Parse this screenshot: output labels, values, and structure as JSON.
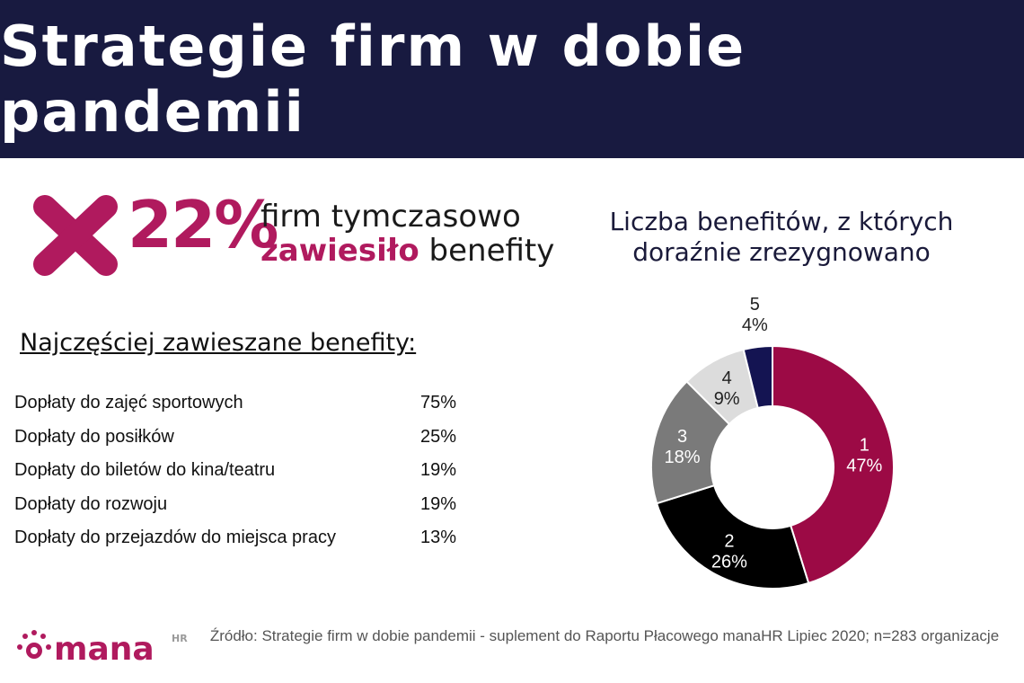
{
  "header": {
    "title": "Strategie firm w dobie pandemii"
  },
  "highlight": {
    "percent": "22%",
    "line1": "firm tymczasowo",
    "accent_word": "zawiesiło",
    "line2_rest": "benefity"
  },
  "list": {
    "title": "Najczęściej zawieszane benefity:",
    "items": [
      {
        "label": "Dopłaty do zajęć sportowych",
        "value": "75%"
      },
      {
        "label": "Dopłaty do posiłków",
        "value": "25%"
      },
      {
        "label": "Dopłaty do biletów do kina/teatru",
        "value": "19%"
      },
      {
        "label": "Dopłaty do rozwoju",
        "value": "19%"
      },
      {
        "label": "Dopłaty do przejazdów do miejsca pracy",
        "value": "13%"
      }
    ]
  },
  "chart_data": {
    "type": "pie",
    "title": "Liczba benefitów, z których doraźnie zrezygnowano",
    "categories": [
      "1",
      "2",
      "3",
      "4",
      "5"
    ],
    "values": [
      47,
      26,
      18,
      9,
      4
    ],
    "labels": [
      "47%",
      "26%",
      "18%",
      "9%",
      "4%"
    ],
    "colors": [
      "#9c0a45",
      "#000000",
      "#7a7a7a",
      "#dcdcdc",
      "#141452"
    ],
    "label_colors": [
      "#ffffff",
      "#ffffff",
      "#ffffff",
      "#222222",
      "#222222"
    ]
  },
  "logo": {
    "text": "mana",
    "suffix": "HR"
  },
  "footer": {
    "source": "Źródło: Strategie firm w dobie pandemii - suplement do Raportu Płacowego manaHR Lipiec 2020; n=283 organizacje"
  }
}
